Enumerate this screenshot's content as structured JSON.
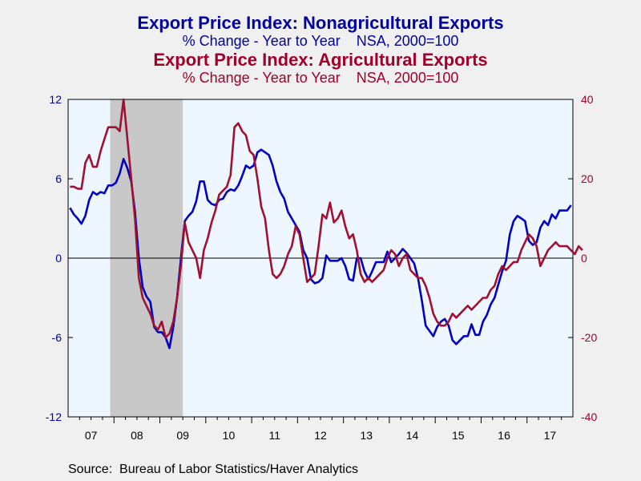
{
  "chart_data": {
    "type": "line",
    "title": "Export Price Index: Nonagricultural Exports",
    "subtitle": "% Change - Year to Year    NSA, 2000=100",
    "title2": "Export Price Index: Agricultural Exports",
    "subtitle2": "% Change - Year to Year    NSA, 2000=100",
    "source": "Source:  Bureau of Labor Statistics/Haver Analytics",
    "x_labels": [
      "07",
      "08",
      "09",
      "10",
      "11",
      "12",
      "13",
      "14",
      "15",
      "16",
      "17"
    ],
    "x_range": [
      "2007-01",
      "2017-12"
    ],
    "left_axis": {
      "min": -12,
      "max": 12,
      "ticks": [
        12,
        6,
        0,
        -6,
        -12
      ],
      "color": "#0000a0"
    },
    "right_axis": {
      "min": -40,
      "max": 40,
      "ticks": [
        40,
        20,
        0,
        -20,
        -40
      ],
      "color": "#a0002a"
    },
    "recession": {
      "start": "2007-12",
      "end": "2009-06"
    },
    "grid": false,
    "series": [
      {
        "name": "Export Price Index: Nonagricultural Exports",
        "axis": "left",
        "color": "#0000c0",
        "values": [
          3.8,
          3.3,
          3.0,
          2.6,
          3.2,
          4.4,
          5.0,
          4.8,
          5.0,
          4.9,
          5.5,
          5.5,
          5.7,
          6.4,
          7.5,
          6.8,
          5.8,
          3.5,
          0.0,
          -2.2,
          -2.9,
          -3.3,
          -5.2,
          -5.6,
          -5.6,
          -6.0,
          -6.8,
          -5.2,
          -3.0,
          0.0,
          2.8,
          3.2,
          3.5,
          4.3,
          5.8,
          5.8,
          4.4,
          4.1,
          4.0,
          4.4,
          4.5,
          5.0,
          5.2,
          5.1,
          5.5,
          6.2,
          7.0,
          6.8,
          7.0,
          8.0,
          8.2,
          8.0,
          7.8,
          7.0,
          5.8,
          5.0,
          4.5,
          3.5,
          3.0,
          2.5,
          2.0,
          0.6,
          0.0,
          -1.6,
          -1.9,
          -1.8,
          -1.5,
          0.2,
          -0.2,
          -0.2,
          -0.2,
          0.0,
          -0.6,
          -1.6,
          -1.7,
          0.0,
          0.0,
          -1.0,
          -1.6,
          -1.0,
          -0.3,
          -0.3,
          -0.3,
          0.5,
          -0.3,
          0.0,
          0.3,
          0.7,
          0.4,
          0.0,
          -0.4,
          -1.5,
          -3.2,
          -5.1,
          -5.5,
          -5.9,
          -5.2,
          -4.8,
          -4.6,
          -5.1,
          -6.2,
          -6.5,
          -6.2,
          -5.9,
          -5.9,
          -5.0,
          -5.8,
          -5.8,
          -4.8,
          -4.3,
          -3.5,
          -3.0,
          -2.0,
          -1.0,
          -0.2,
          1.8,
          2.8,
          3.2,
          3.0,
          2.8,
          1.3,
          1.0,
          1.2,
          2.3,
          2.8,
          2.5,
          3.3,
          3.0,
          3.6,
          3.6,
          3.6,
          4.0
        ]
      },
      {
        "name": "Export Price Index: Agricultural Exports",
        "axis": "right",
        "color": "#a01030",
        "values": [
          18,
          18,
          17.5,
          17.5,
          24,
          26,
          23,
          23,
          27,
          30,
          33,
          33,
          33,
          32,
          40,
          30,
          20,
          10,
          -5,
          -10,
          -12,
          -14,
          -17,
          -18,
          -16,
          -20,
          -19,
          -16,
          -10,
          -2,
          9,
          4,
          2,
          0,
          -5,
          2,
          5,
          9,
          12,
          16,
          17,
          18,
          21,
          33,
          34,
          32,
          31,
          27,
          26,
          20,
          13,
          10,
          2,
          -4,
          -5,
          -4,
          -2,
          1,
          3,
          8,
          6,
          0,
          -6,
          -5,
          -4,
          3,
          11,
          10,
          14,
          9,
          10,
          12,
          8,
          5,
          6,
          2,
          -4,
          -6,
          -5,
          -6,
          -5,
          -4,
          -3,
          0,
          2,
          1,
          -2,
          0,
          1,
          -3,
          -4,
          -5,
          -5,
          -7,
          -10,
          -14,
          -16,
          -17,
          -17,
          -16,
          -14,
          -15,
          -14,
          -13,
          -12,
          -13,
          -12,
          -11,
          -10,
          -10,
          -8,
          -7,
          -4,
          -2,
          -3,
          -2,
          -1,
          -1,
          2,
          4,
          6,
          5,
          3,
          -2,
          0,
          2,
          3,
          4,
          3,
          3,
          3,
          2,
          1,
          3,
          2
        ]
      }
    ]
  }
}
